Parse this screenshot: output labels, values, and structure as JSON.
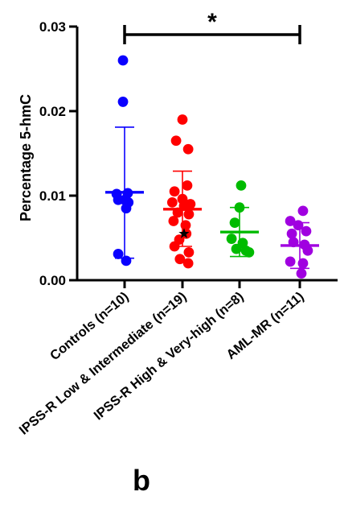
{
  "chart_data": {
    "type": "scatter",
    "title": "",
    "xlabel": "",
    "ylabel": "Percentage 5-hmC",
    "ylim": [
      0,
      0.03
    ],
    "yticks": [
      0.0,
      0.01,
      0.02,
      0.03
    ],
    "ytick_labels": [
      "0.00",
      "0.01",
      "0.02",
      "0.03"
    ],
    "grid": false,
    "categories": [
      "Controls (n=10)",
      "IPSS-R Low & Intermediate (n=19)",
      "IPSS-R High & Very-high (n=8)",
      "AML-MR (n=11)"
    ],
    "series": [
      {
        "category": "Controls (n=10)",
        "color": "#0a00ff",
        "mean": 0.0104,
        "sd_upper": 0.0181,
        "sd_lower": 0.0026,
        "values": [
          0.026,
          0.0211,
          0.0103,
          0.0102,
          0.0095,
          0.0095,
          0.0092,
          0.0085,
          0.0031,
          0.0023
        ],
        "jitter": [
          -0.05,
          -0.05,
          0.1,
          -0.25,
          -0.2,
          0.0,
          0.12,
          0.05,
          -0.2,
          0.05
        ]
      },
      {
        "category": "IPSS-R Low & Intermediate (n=19)",
        "color": "#ff0000",
        "mean": 0.0084,
        "sd_upper": 0.0129,
        "sd_lower": 0.004,
        "values": [
          0.019,
          0.0165,
          0.0155,
          0.0112,
          0.0105,
          0.0096,
          0.0092,
          0.009,
          0.0088,
          0.008,
          0.0078,
          0.007,
          0.0065,
          0.0055,
          0.0048,
          0.004,
          0.0033,
          0.0025,
          0.002
        ],
        "jitter": [
          0.0,
          -0.2,
          0.18,
          0.15,
          -0.25,
          0.0,
          -0.32,
          0.25,
          0.05,
          -0.15,
          0.2,
          -0.28,
          0.1,
          0.12,
          -0.1,
          -0.25,
          0.2,
          -0.08,
          0.18
        ],
        "starred": {
          "value": 0.0055,
          "jitter": 0.05
        }
      },
      {
        "category": "IPSS-R High & Very-high (n=8)",
        "color": "#00bb00",
        "mean": 0.0057,
        "sd_upper": 0.0086,
        "sd_lower": 0.0028,
        "values": [
          0.0112,
          0.0086,
          0.0068,
          0.0049,
          0.0044,
          0.0037,
          0.0035,
          0.0033
        ],
        "jitter": [
          0.05,
          0.0,
          -0.15,
          -0.25,
          0.1,
          -0.1,
          0.2,
          0.3
        ]
      },
      {
        "category": "AML-MR (n=11)",
        "color": "#a000e0",
        "mean": 0.0041,
        "sd_upper": 0.0068,
        "sd_lower": 0.0014,
        "values": [
          0.0082,
          0.007,
          0.0065,
          0.0058,
          0.0055,
          0.0045,
          0.0042,
          0.0035,
          0.0022,
          0.002,
          0.0008
        ],
        "jitter": [
          0.1,
          -0.3,
          -0.05,
          0.2,
          -0.25,
          -0.2,
          0.15,
          0.25,
          -0.3,
          0.1,
          0.05
        ]
      }
    ],
    "annotations": {
      "significance_label": "*",
      "significance_between": [
        "Controls (n=10)",
        "AML-MR (n=11)"
      ]
    }
  },
  "panel_label": "b"
}
